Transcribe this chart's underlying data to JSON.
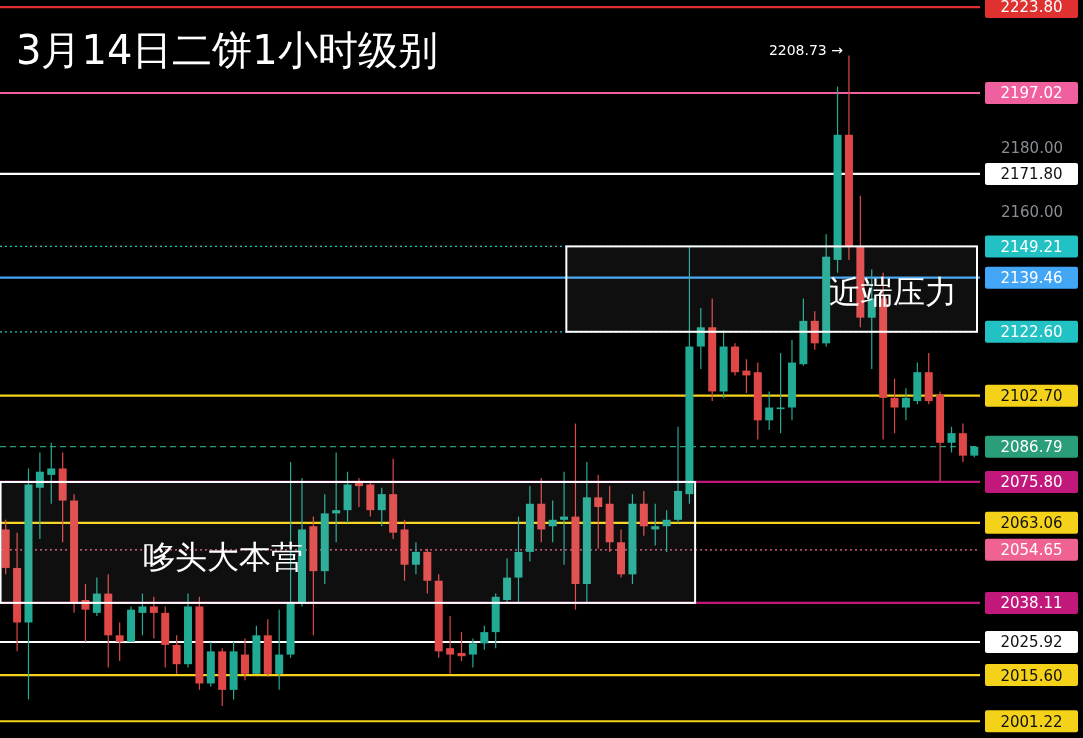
{
  "chart_data": {
    "type": "candlestick",
    "title": "3月14日二饼1小时级别",
    "categories": [
      null,
      null,
      null,
      null,
      null,
      null,
      null,
      null,
      null,
      null,
      null,
      null,
      null,
      null,
      null,
      null,
      null,
      null,
      null,
      null,
      null,
      null,
      null,
      null,
      null,
      null,
      null,
      null,
      null,
      null,
      null,
      null,
      null,
      null,
      null,
      null,
      null,
      null,
      null,
      null,
      null,
      null,
      null,
      null,
      null,
      null,
      null,
      null,
      null,
      null,
      null,
      null,
      null,
      null,
      null,
      null,
      null,
      null,
      null,
      null,
      null,
      null,
      null,
      null,
      null,
      null,
      null,
      null,
      null,
      null,
      null,
      null,
      null,
      null,
      null,
      null,
      null,
      null,
      null,
      null,
      null,
      null,
      null,
      null,
      null,
      null
    ],
    "ohlc": [
      [
        2061,
        2064,
        2047,
        2049
      ],
      [
        2049,
        2060,
        2023,
        2032
      ],
      [
        2032,
        2080,
        2008,
        2075
      ],
      [
        2074,
        2085,
        2058,
        2079
      ],
      [
        2078,
        2088,
        2069,
        2080
      ],
      [
        2080,
        2085,
        2057,
        2070
      ],
      [
        2070,
        2072,
        2035,
        2038
      ],
      [
        2039,
        2044,
        2026,
        2036
      ],
      [
        2035,
        2046,
        2034,
        2041
      ],
      [
        2041,
        2047,
        2018,
        2028
      ],
      [
        2028,
        2032,
        2020,
        2026
      ],
      [
        2026,
        2037,
        2026,
        2036
      ],
      [
        2035,
        2041,
        2028,
        2037
      ],
      [
        2037,
        2040,
        2027,
        2035
      ],
      [
        2035,
        2037,
        2018,
        2025
      ],
      [
        2025,
        2028,
        2016,
        2019
      ],
      [
        2019,
        2041,
        2018,
        2037
      ],
      [
        2037,
        2040,
        2011,
        2013
      ],
      [
        2013,
        2026,
        2012,
        2023
      ],
      [
        2023,
        2024,
        2006,
        2011
      ],
      [
        2011,
        2026,
        2008,
        2023
      ],
      [
        2022,
        2027,
        2014,
        2016
      ],
      [
        2016,
        2031,
        2016,
        2028
      ],
      [
        2028,
        2033,
        2015,
        2016
      ],
      [
        2016,
        2036,
        2011,
        2022
      ],
      [
        2022,
        2082,
        2021,
        2038
      ],
      [
        2038,
        2077,
        2037,
        2061
      ],
      [
        2062,
        2065,
        2028,
        2048
      ],
      [
        2048,
        2072,
        2044,
        2066
      ],
      [
        2066,
        2085,
        2057,
        2067
      ],
      [
        2067,
        2079,
        2063,
        2075
      ],
      [
        2075.5,
        2077,
        2068,
        2074.5
      ],
      [
        2075,
        2076,
        2065,
        2067
      ],
      [
        2067,
        2074,
        2062,
        2072
      ],
      [
        2072,
        2083,
        2058,
        2060
      ],
      [
        2061,
        2064,
        2045,
        2050
      ],
      [
        2050,
        2057,
        2047,
        2054
      ],
      [
        2054,
        2055,
        2041,
        2045
      ],
      [
        2045,
        2047,
        2021,
        2023
      ],
      [
        2024,
        2034,
        2016,
        2022
      ],
      [
        2022.5,
        2029,
        2020,
        2021.5
      ],
      [
        2022,
        2027,
        2018,
        2025.5
      ],
      [
        2025.5,
        2031,
        2023.5,
        2029
      ],
      [
        2029,
        2041,
        2024,
        2040
      ],
      [
        2039,
        2052,
        2038,
        2046
      ],
      [
        2046,
        2065,
        2038,
        2054
      ],
      [
        2054,
        2074.5,
        2051,
        2069
      ],
      [
        2069,
        2077,
        2057,
        2061
      ],
      [
        2062,
        2070,
        2057,
        2064
      ],
      [
        2064,
        2079,
        2050,
        2065
      ],
      [
        2065,
        2094,
        2036,
        2044
      ],
      [
        2044,
        2082,
        2038,
        2071
      ],
      [
        2071,
        2078,
        2055,
        2068
      ],
      [
        2069,
        2074.5,
        2054,
        2057
      ],
      [
        2057,
        2061,
        2046,
        2047
      ],
      [
        2047,
        2072,
        2044,
        2069
      ],
      [
        2069,
        2073,
        2059,
        2062
      ],
      [
        2061,
        2069,
        2056,
        2062
      ],
      [
        2062,
        2067,
        2054,
        2064
      ],
      [
        2064,
        2093,
        2063,
        2073
      ],
      [
        2072,
        2149,
        2069,
        2118
      ],
      [
        2118,
        2130,
        2111,
        2124
      ],
      [
        2124,
        2133,
        2101,
        2104
      ],
      [
        2104,
        2123,
        2102,
        2118
      ],
      [
        2118,
        2119,
        2109,
        2110
      ],
      [
        2110.5,
        2114,
        2103.5,
        2109
      ],
      [
        2110,
        2113,
        2089,
        2095
      ],
      [
        2095,
        2104,
        2092,
        2099
      ],
      [
        2098.5,
        2116,
        2091,
        2099
      ],
      [
        2099,
        2120,
        2095,
        2113
      ],
      [
        2112.5,
        2133,
        2112,
        2126
      ],
      [
        2126,
        2129,
        2117,
        2119
      ],
      [
        2119,
        2153,
        2118,
        2146
      ],
      [
        2145,
        2199,
        2141,
        2184
      ],
      [
        2184,
        2208.73,
        2145,
        2149
      ],
      [
        2149,
        2165,
        2124,
        2127
      ],
      [
        2127,
        2142,
        2111,
        2133
      ],
      [
        2133,
        2141,
        2089,
        2102
      ],
      [
        2102,
        2108,
        2091,
        2099
      ],
      [
        2099,
        2105,
        2095,
        2102
      ],
      [
        2101,
        2113,
        2100,
        2110
      ],
      [
        2110,
        2116,
        2100,
        2101
      ],
      [
        2103,
        2104,
        2076,
        2088
      ],
      [
        2088,
        2093,
        2085,
        2091
      ],
      [
        2091,
        2094,
        2082,
        2084
      ],
      [
        2084,
        2087,
        2083.5,
        2086.79
      ]
    ],
    "colors": [
      "#e04848",
      "#e04848",
      "#22ab94",
      "#22ab94",
      "#22ab94",
      "#e04848",
      "#e04848",
      "#e04848",
      "#22ab94",
      "#e04848",
      "#e04848",
      "#22ab94",
      "#22ab94",
      "#e04848",
      "#e04848",
      "#e04848",
      "#22ab94",
      "#e04848",
      "#22ab94",
      "#e04848",
      "#22ab94",
      "#e04848",
      "#22ab94",
      "#e04848",
      "#22ab94",
      "#22ab94",
      "#22ab94",
      "#e04848",
      "#22ab94",
      "#22ab94",
      "#22ab94",
      "#e04848",
      "#e04848",
      "#22ab94",
      "#e04848",
      "#e04848",
      "#22ab94",
      "#e04848",
      "#e04848",
      "#e04848",
      "#e04848",
      "#22ab94",
      "#22ab94",
      "#22ab94",
      "#22ab94",
      "#22ab94",
      "#22ab94",
      "#e04848",
      "#22ab94",
      "#22ab94",
      "#e04848",
      "#22ab94",
      "#e04848",
      "#e04848",
      "#e04848",
      "#22ab94",
      "#e04848",
      "#22ab94",
      "#22ab94",
      "#22ab94",
      "#22ab94",
      "#22ab94",
      "#e04848",
      "#22ab94",
      "#e04848",
      "#e04848",
      "#e04848",
      "#22ab94",
      "#22ab94",
      "#22ab94",
      "#22ab94",
      "#e04848",
      "#22ab94",
      "#22ab94",
      "#e04848",
      "#e04848",
      "#22ab94",
      "#e04848",
      "#e04848",
      "#22ab94",
      "#22ab94",
      "#e04848",
      "#e04848",
      "#22ab94",
      "#e04848",
      "#22ab94"
    ],
    "ylim": [
      1996,
      2226
    ],
    "yticks": [
      {
        "value": 2160,
        "label": "2160.00"
      },
      {
        "value": 2180,
        "label": "2180.00"
      }
    ],
    "tick_labels": "y",
    "ref_lines": [
      {
        "axis": "y",
        "value": 2223.8,
        "label": "2223.80",
        "color": "#e03131"
      },
      {
        "axis": "y",
        "value": 2197.02,
        "label": "2197.02",
        "color": "#f0609e"
      },
      {
        "axis": "y",
        "value": 2171.8,
        "label": "2171.80",
        "color": "#ffffff"
      },
      {
        "axis": "y",
        "value": 2149.21,
        "label": "2149.21",
        "color": "#22c1c3",
        "line_style": "dotted"
      },
      {
        "axis": "y",
        "value": 2139.46,
        "label": "2139.46",
        "color": "#42a5f5"
      },
      {
        "axis": "y",
        "value": 2122.6,
        "label": "2122.60",
        "color": "#22c1c3",
        "line_style": "dotted"
      },
      {
        "axis": "y",
        "value": 2102.7,
        "label": "2102.70",
        "color": "#f5d21a"
      },
      {
        "axis": "y",
        "value": 2086.79,
        "label": "2086.79",
        "color": "#2a9d7a",
        "line_style": "dashed"
      },
      {
        "axis": "y",
        "value": 2075.8,
        "label": "2075.80",
        "color": "#c2187b"
      },
      {
        "axis": "y",
        "value": 2063.06,
        "label": "2063.06",
        "color": "#f5d21a"
      },
      {
        "axis": "y",
        "value": 2054.65,
        "label": "2054.65",
        "color": "#f06292",
        "line_style": "dotted"
      },
      {
        "axis": "y",
        "value": 2038.11,
        "label": "2038.11",
        "color": "#c2187b"
      },
      {
        "axis": "y",
        "value": 2025.92,
        "label": "2025.92",
        "color": "#ffffff"
      },
      {
        "axis": "y",
        "value": 2015.6,
        "label": "2015.60",
        "color": "#f5d21a"
      },
      {
        "axis": "y",
        "value": 2001.22,
        "label": "2001.22",
        "color": "#f5d21a"
      }
    ],
    "bands": [
      {
        "axis": "y",
        "from": 2038.11,
        "to": 2075.8,
        "label": "哆头大本营",
        "color": "#ffffff"
      },
      {
        "axis": "y",
        "from": 2122.6,
        "to": 2149.21,
        "label": "近端压力",
        "color": "#ffffff"
      }
    ],
    "annotations": [
      "2208.73 →"
    ]
  }
}
